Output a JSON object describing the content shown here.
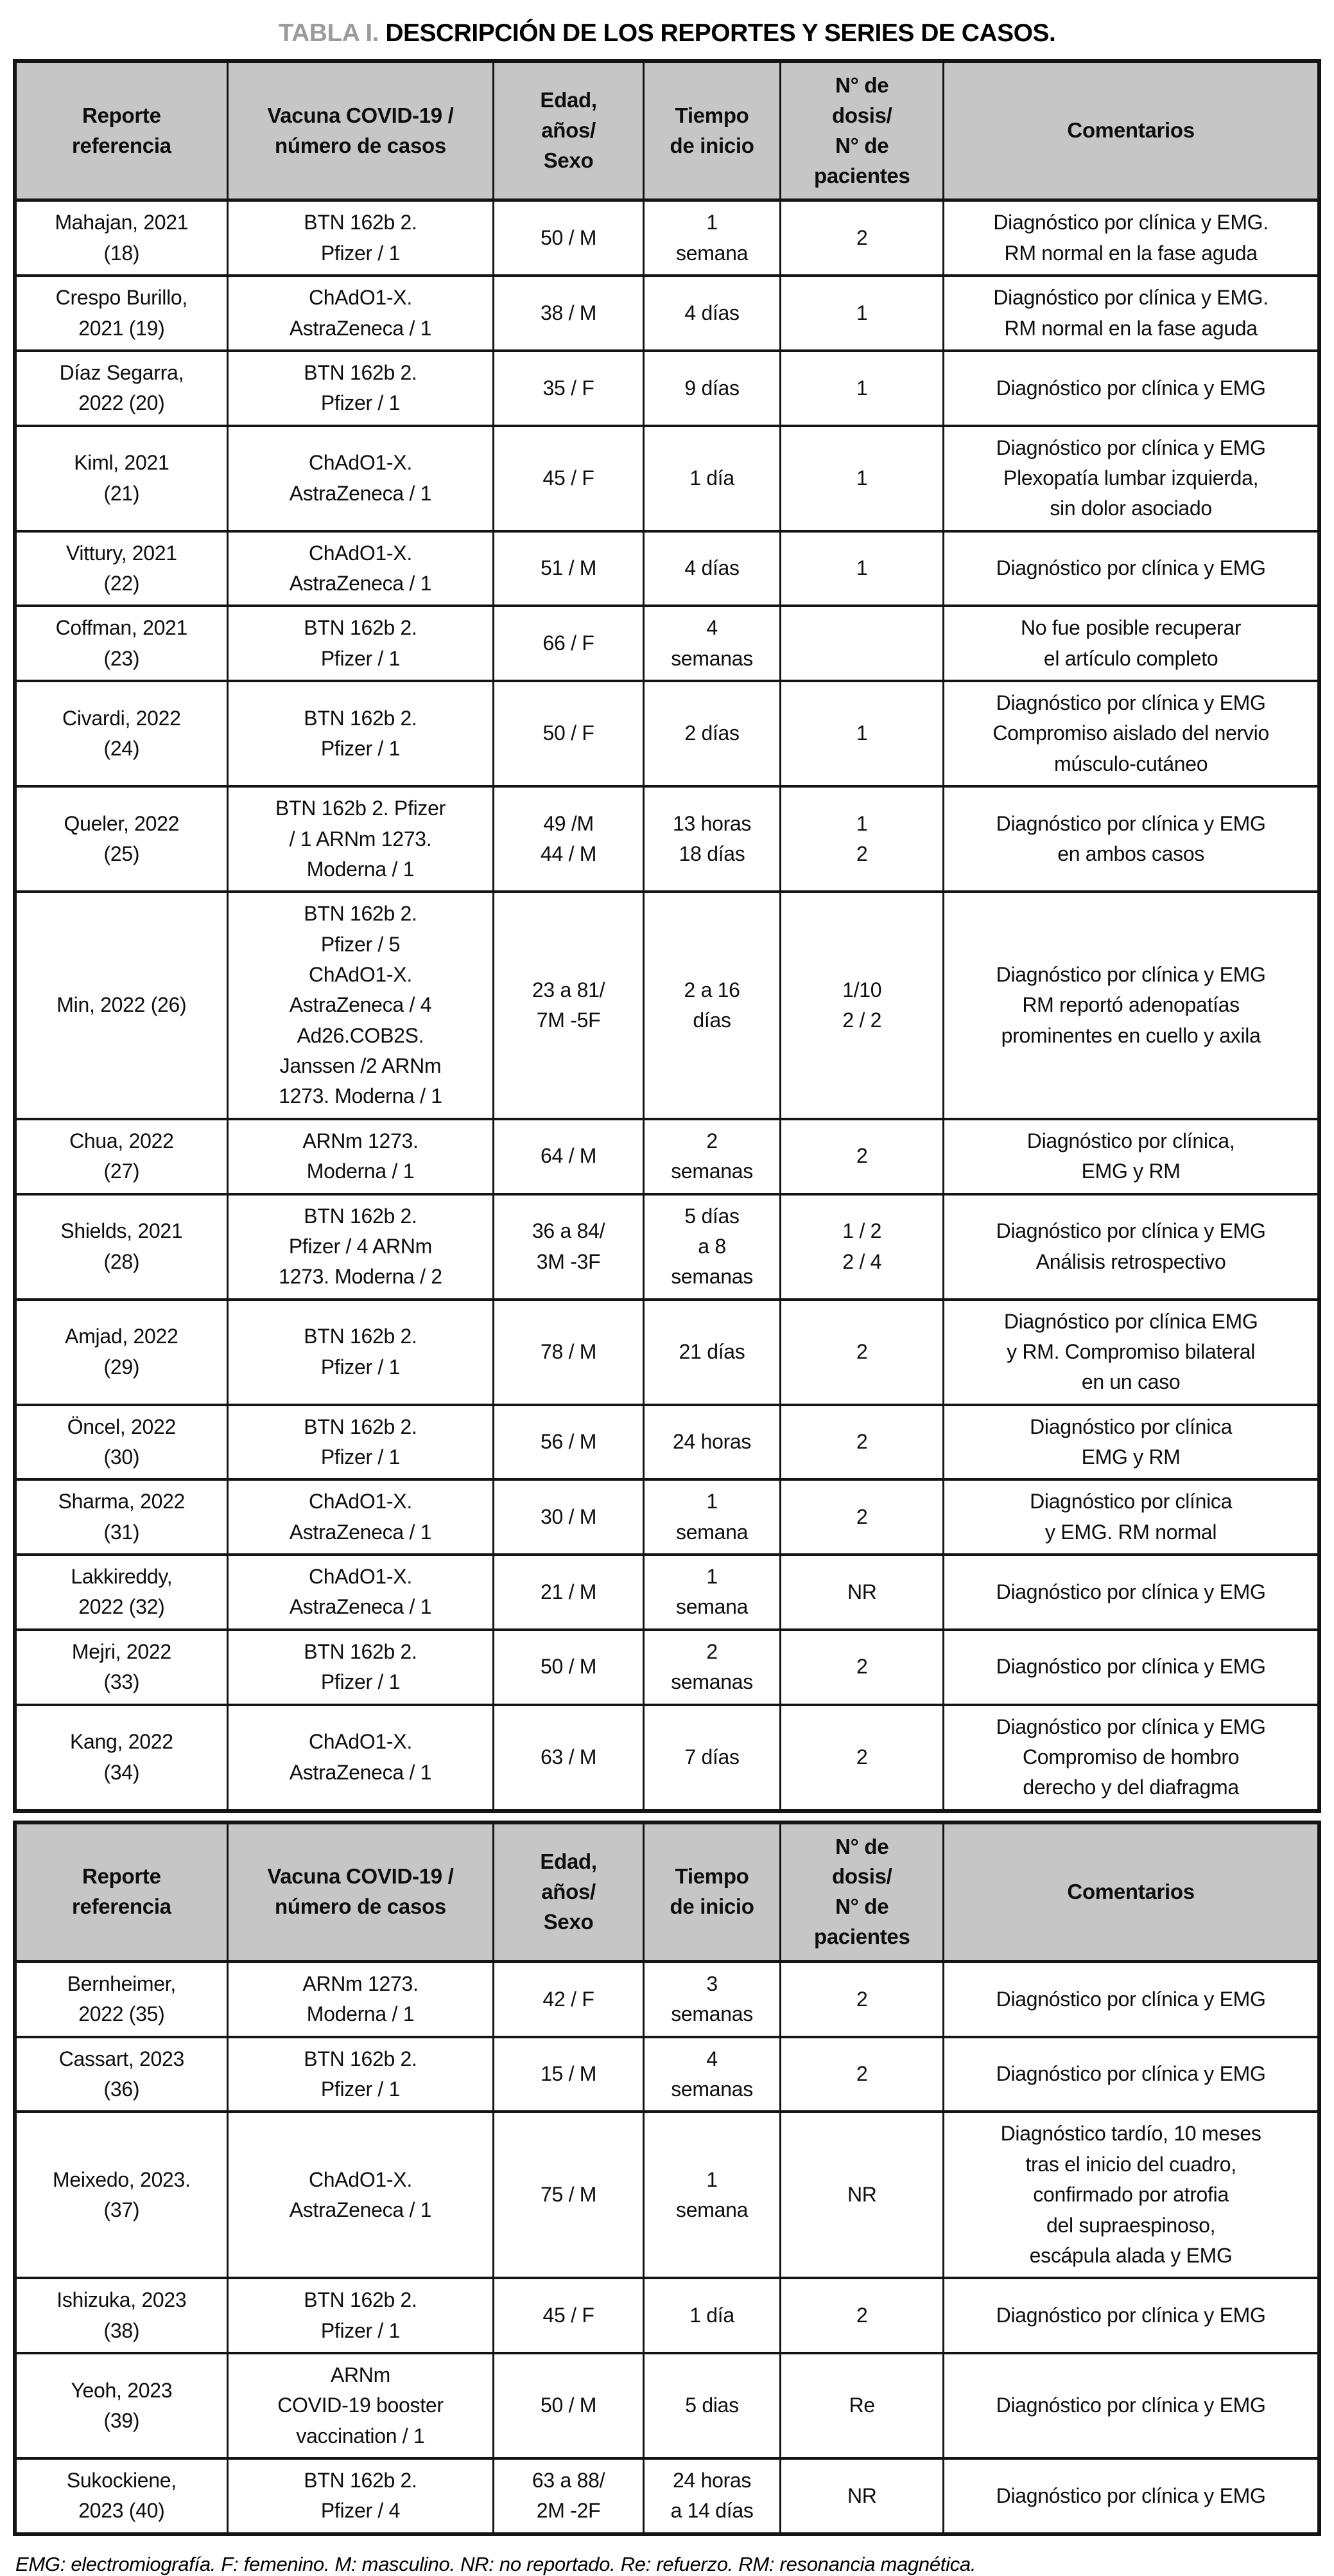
{
  "title": {
    "label": "TABLA I.",
    "text": " DESCRIPCIÓN DE LOS REPORTES Y SERIES DE CASOS."
  },
  "columns": [
    "Reporte\nreferencia",
    "Vacuna COVID-19 /\nnúmero de casos",
    "Edad,\naños/\nSexo",
    "Tiempo\nde inicio",
    "N° de\ndosis/\nN° de\npacientes",
    "Comentarios"
  ],
  "sections": [
    {
      "rows": [
        [
          "Mahajan, 2021\n(18)",
          "BTN 162b 2.\nPfizer / 1",
          "50 / M",
          "1\nsemana",
          "2",
          "Diagnóstico por clínica y EMG.\nRM normal en la fase aguda"
        ],
        [
          "Crespo Burillo,\n2021 (19)",
          "ChAdO1-X.\nAstraZeneca / 1",
          "38 / M",
          "4 días",
          "1",
          "Diagnóstico por clínica y EMG.\nRM normal en la fase aguda"
        ],
        [
          "Díaz Segarra,\n2022 (20)",
          "BTN 162b 2.\nPfizer / 1",
          "35 / F",
          "9 días",
          "1",
          "Diagnóstico por clínica y EMG"
        ],
        [
          "Kiml, 2021\n(21)",
          "ChAdO1-X.\nAstraZeneca / 1",
          "45 / F",
          "1 día",
          "1",
          "Diagnóstico por clínica y EMG\nPlexopatía lumbar izquierda,\nsin dolor asociado"
        ],
        [
          "Vittury, 2021\n(22)",
          "ChAdO1-X.\nAstraZeneca / 1",
          "51 / M",
          "4 días",
          "1",
          "Diagnóstico por clínica y EMG"
        ],
        [
          "Coffman, 2021\n(23)",
          "BTN 162b 2.\nPfizer / 1",
          "66 / F",
          "4\nsemanas",
          "",
          "No fue posible recuperar\nel artículo completo"
        ],
        [
          "Civardi, 2022\n(24)",
          "BTN 162b 2.\nPfizer / 1",
          "50 / F",
          "2 días",
          "1",
          "Diagnóstico por clínica y EMG\nCompromiso aislado del nervio\nmúsculo-cutáneo"
        ],
        [
          "Queler, 2022\n(25)",
          "BTN 162b 2. Pfizer\n/ 1 ARNm 1273.\nModerna / 1",
          "49 /M\n44 / M",
          "13 horas\n18 días",
          "1\n2",
          "Diagnóstico por clínica y EMG\nen ambos casos"
        ],
        [
          "Min, 2022 (26)",
          "BTN 162b 2.\nPfizer / 5\nChAdO1-X.\nAstraZeneca / 4\nAd26.COB2S.\nJanssen /2 ARNm\n1273. Moderna / 1",
          "23 a 81/\n7M -5F",
          "2 a 16\ndías",
          "1/10\n2 / 2",
          "Diagnóstico por clínica y EMG\nRM reportó adenopatías\nprominentes en cuello y axila"
        ],
        [
          "Chua, 2022\n(27)",
          "ARNm 1273.\nModerna / 1",
          "64 / M",
          "2\nsemanas",
          "2",
          "Diagnóstico por clínica,\nEMG y RM"
        ],
        [
          "Shields, 2021\n(28)",
          "BTN 162b 2.\nPfizer / 4 ARNm\n1273. Moderna / 2",
          "36 a 84/\n3M -3F",
          "5 días\na 8\nsemanas",
          "1 / 2\n2 / 4",
          "Diagnóstico por clínica y EMG\nAnálisis retrospectivo"
        ],
        [
          "Amjad, 2022\n(29)",
          "BTN 162b 2.\nPfizer / 1",
          "78 / M",
          "21 días",
          "2",
          "Diagnóstico por clínica EMG\ny RM. Compromiso bilateral\nen un caso"
        ],
        [
          "Öncel, 2022\n(30)",
          "BTN 162b 2.\nPfizer / 1",
          "56 / M",
          "24 horas",
          "2",
          "Diagnóstico por clínica\nEMG y RM"
        ],
        [
          "Sharma, 2022\n(31)",
          "ChAdO1-X.\nAstraZeneca / 1",
          "30 / M",
          "1\nsemana",
          "2",
          "Diagnóstico por clínica\ny EMG. RM normal"
        ],
        [
          "Lakkireddy,\n2022 (32)",
          "ChAdO1-X.\nAstraZeneca / 1",
          "21 / M",
          "1\nsemana",
          "NR",
          "Diagnóstico por clínica y EMG"
        ],
        [
          "Mejri, 2022\n(33)",
          "BTN 162b 2.\nPfizer / 1",
          "50 / M",
          "2\nsemanas",
          "2",
          "Diagnóstico por clínica y EMG"
        ],
        [
          "Kang, 2022\n(34)",
          "ChAdO1-X.\nAstraZeneca / 1",
          "63 / M",
          "7 días",
          "2",
          "Diagnóstico por clínica y EMG\nCompromiso de hombro\nderecho y del diafragma"
        ]
      ]
    },
    {
      "rows": [
        [
          "Bernheimer,\n2022 (35)",
          "ARNm 1273.\nModerna / 1",
          "42 / F",
          "3\nsemanas",
          "2",
          "Diagnóstico por clínica y EMG"
        ],
        [
          "Cassart, 2023\n(36)",
          "BTN 162b 2.\nPfizer / 1",
          "15 / M",
          "4\nsemanas",
          "2",
          "Diagnóstico por clínica y EMG"
        ],
        [
          "Meixedo, 2023.\n(37)",
          "ChAdO1-X.\nAstraZeneca / 1",
          "75 / M",
          "1\nsemana",
          "NR",
          "Diagnóstico tardío, 10 meses\ntras el inicio del cuadro,\nconfirmado por atrofia\ndel supraespinoso,\nescápula alada y EMG"
        ],
        [
          "Ishizuka, 2023\n(38)",
          "BTN 162b 2.\nPfizer / 1",
          "45 / F",
          "1 día",
          "2",
          "Diagnóstico por clínica y EMG"
        ],
        [
          "Yeoh, 2023\n(39)",
          "ARNm\nCOVID-19 booster\nvaccination / 1",
          "50 / M",
          "5 dias",
          "Re",
          "Diagnóstico por clínica y EMG"
        ],
        [
          "Sukockiene,\n2023 (40)",
          "BTN 162b 2.\nPfizer / 4",
          "63 a 88/\n2M -2F",
          "24 horas\na 14 días",
          "NR",
          "Diagnóstico por clínica y EMG"
        ]
      ]
    }
  ],
  "footnote": "EMG: electromiografía. F: femenino. M: masculino. NR: no reportado. Re: refuerzo. RM: resonancia magnética.",
  "colors": {
    "header_bg": "#c6c6c6",
    "title_label": "#9b9b9b",
    "border": "#141414"
  }
}
